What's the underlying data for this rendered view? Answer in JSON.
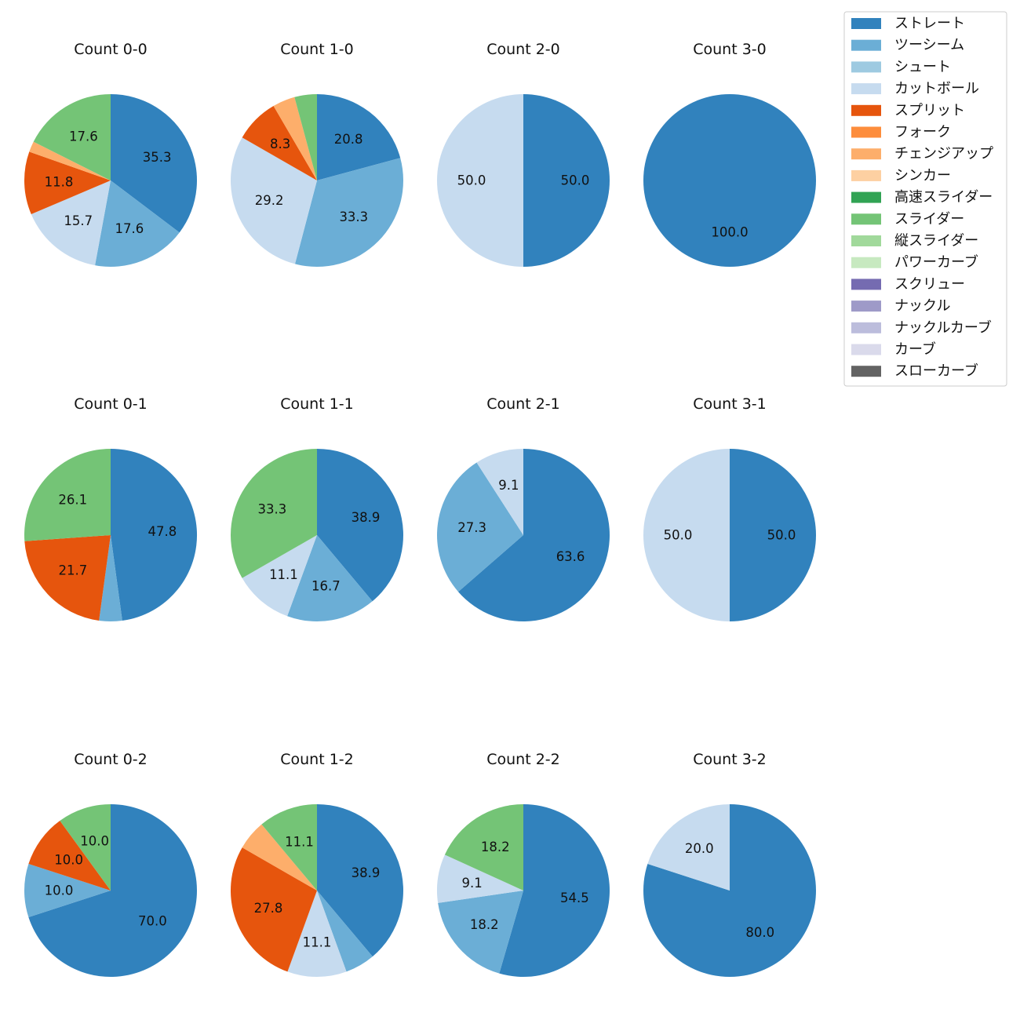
{
  "chart_data": {
    "type": "pie",
    "legend": {
      "placement": "top-right",
      "entries": [
        {
          "name": "ストレート",
          "color": "#3182bd"
        },
        {
          "name": "ツーシーム",
          "color": "#6baed6"
        },
        {
          "name": "シュート",
          "color": "#9ecae1"
        },
        {
          "name": "カットボール",
          "color": "#c6dbef"
        },
        {
          "name": "スプリット",
          "color": "#e6550d"
        },
        {
          "name": "フォーク",
          "color": "#fd8d3c"
        },
        {
          "name": "チェンジアップ",
          "color": "#fdae6b"
        },
        {
          "name": "シンカー",
          "color": "#fdd0a2"
        },
        {
          "name": "高速スライダー",
          "color": "#31a354"
        },
        {
          "name": "スライダー",
          "color": "#74c476"
        },
        {
          "name": "縦スライダー",
          "color": "#a1d99b"
        },
        {
          "name": "パワーカーブ",
          "color": "#c7e9c0"
        },
        {
          "name": "スクリュー",
          "color": "#756bb1"
        },
        {
          "name": "ナックル",
          "color": "#9e9ac8"
        },
        {
          "name": "ナックルカーブ",
          "color": "#bcbddc"
        },
        {
          "name": "カーブ",
          "color": "#dadaeb"
        },
        {
          "name": "スローカーブ",
          "color": "#636363"
        }
      ]
    },
    "pies": [
      {
        "title": "Count 0-0",
        "slices": [
          {
            "pitch": "ストレート",
            "value": 35.3,
            "label": "35.3"
          },
          {
            "pitch": "ツーシーム",
            "value": 17.6,
            "label": "17.6"
          },
          {
            "pitch": "カットボール",
            "value": 15.7,
            "label": "15.7"
          },
          {
            "pitch": "スプリット",
            "value": 11.8,
            "label": "11.8"
          },
          {
            "pitch": "チェンジアップ",
            "value": 2.0,
            "label": ""
          },
          {
            "pitch": "スライダー",
            "value": 17.6,
            "label": "17.6"
          }
        ]
      },
      {
        "title": "Count 1-0",
        "slices": [
          {
            "pitch": "ストレート",
            "value": 20.8,
            "label": "20.8"
          },
          {
            "pitch": "ツーシーム",
            "value": 33.3,
            "label": "33.3"
          },
          {
            "pitch": "カットボール",
            "value": 29.2,
            "label": "29.2"
          },
          {
            "pitch": "スプリット",
            "value": 8.3,
            "label": "8.3"
          },
          {
            "pitch": "チェンジアップ",
            "value": 4.2,
            "label": ""
          },
          {
            "pitch": "スライダー",
            "value": 4.2,
            "label": ""
          }
        ]
      },
      {
        "title": "Count 2-0",
        "slices": [
          {
            "pitch": "ストレート",
            "value": 50.0,
            "label": "50.0"
          },
          {
            "pitch": "カットボール",
            "value": 50.0,
            "label": "50.0"
          }
        ]
      },
      {
        "title": "Count 3-0",
        "slices": [
          {
            "pitch": "ストレート",
            "value": 100.0,
            "label": "100.0"
          }
        ]
      },
      {
        "title": "Count 0-1",
        "slices": [
          {
            "pitch": "ストレート",
            "value": 47.8,
            "label": "47.8"
          },
          {
            "pitch": "ツーシーム",
            "value": 4.3,
            "label": ""
          },
          {
            "pitch": "スプリット",
            "value": 21.7,
            "label": "21.7"
          },
          {
            "pitch": "スライダー",
            "value": 26.1,
            "label": "26.1"
          }
        ]
      },
      {
        "title": "Count 1-1",
        "slices": [
          {
            "pitch": "ストレート",
            "value": 38.9,
            "label": "38.9"
          },
          {
            "pitch": "ツーシーム",
            "value": 16.7,
            "label": "16.7"
          },
          {
            "pitch": "カットボール",
            "value": 11.1,
            "label": "11.1"
          },
          {
            "pitch": "スライダー",
            "value": 33.3,
            "label": "33.3"
          }
        ]
      },
      {
        "title": "Count 2-1",
        "slices": [
          {
            "pitch": "ストレート",
            "value": 63.6,
            "label": "63.6"
          },
          {
            "pitch": "ツーシーム",
            "value": 27.3,
            "label": "27.3"
          },
          {
            "pitch": "カットボール",
            "value": 9.1,
            "label": "9.1"
          }
        ]
      },
      {
        "title": "Count 3-1",
        "slices": [
          {
            "pitch": "ストレート",
            "value": 50.0,
            "label": "50.0"
          },
          {
            "pitch": "カットボール",
            "value": 50.0,
            "label": "50.0"
          }
        ]
      },
      {
        "title": "Count 0-2",
        "slices": [
          {
            "pitch": "ストレート",
            "value": 70.0,
            "label": "70.0"
          },
          {
            "pitch": "ツーシーム",
            "value": 10.0,
            "label": "10.0"
          },
          {
            "pitch": "スプリット",
            "value": 10.0,
            "label": "10.0"
          },
          {
            "pitch": "スライダー",
            "value": 10.0,
            "label": "10.0"
          }
        ]
      },
      {
        "title": "Count 1-2",
        "slices": [
          {
            "pitch": "ストレート",
            "value": 38.9,
            "label": "38.9"
          },
          {
            "pitch": "ツーシーム",
            "value": 5.6,
            "label": ""
          },
          {
            "pitch": "カットボール",
            "value": 11.1,
            "label": "11.1"
          },
          {
            "pitch": "スプリット",
            "value": 27.8,
            "label": "27.8"
          },
          {
            "pitch": "チェンジアップ",
            "value": 5.6,
            "label": ""
          },
          {
            "pitch": "スライダー",
            "value": 11.1,
            "label": "11.1"
          }
        ]
      },
      {
        "title": "Count 2-2",
        "slices": [
          {
            "pitch": "ストレート",
            "value": 54.5,
            "label": "54.5"
          },
          {
            "pitch": "ツーシーム",
            "value": 18.2,
            "label": "18.2"
          },
          {
            "pitch": "カットボール",
            "value": 9.1,
            "label": "9.1"
          },
          {
            "pitch": "スライダー",
            "value": 18.2,
            "label": "18.2"
          }
        ]
      },
      {
        "title": "Count 3-2",
        "slices": [
          {
            "pitch": "ストレート",
            "value": 80.0,
            "label": "80.0"
          },
          {
            "pitch": "カットボール",
            "value": 20.0,
            "label": "20.0"
          }
        ]
      }
    ]
  }
}
